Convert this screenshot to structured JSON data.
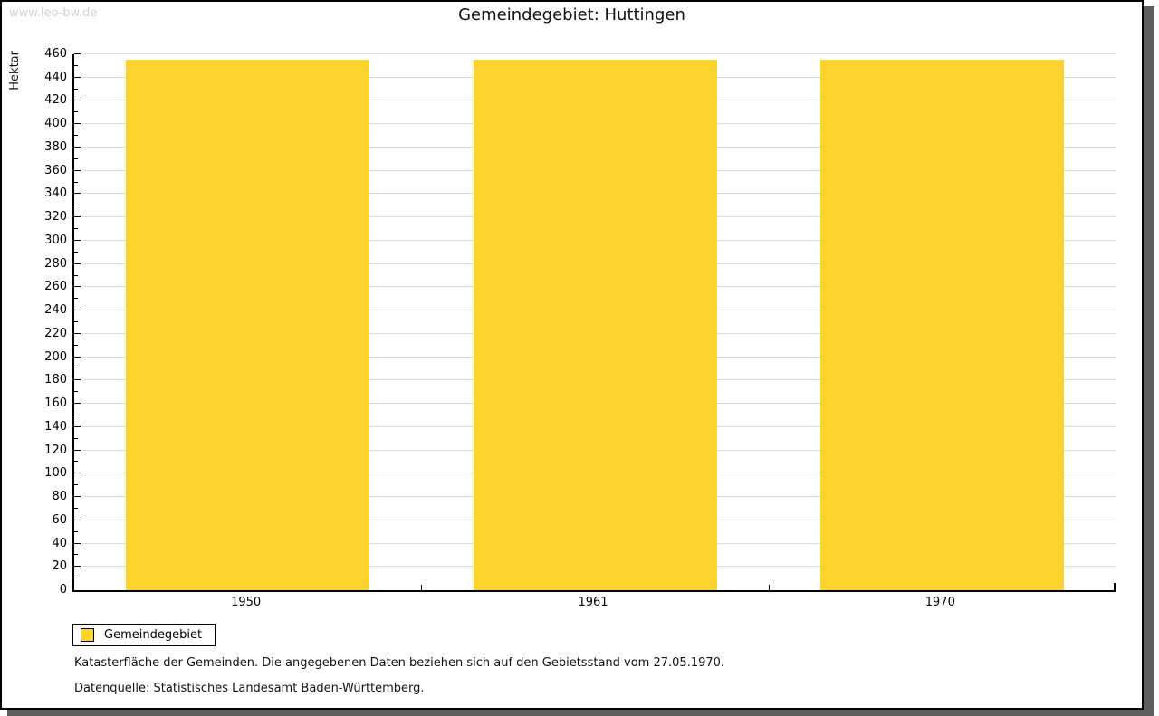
{
  "watermark": "www.leo-bw.de",
  "title": "Gemeindegebiet: Huttingen",
  "chart_data": {
    "type": "bar",
    "title": "Gemeindegebiet: Huttingen",
    "categories": [
      "1950",
      "1961",
      "1970"
    ],
    "series": [
      {
        "name": "Gemeindegebiet",
        "values": [
          455,
          455,
          455
        ]
      }
    ],
    "xlabel": "",
    "ylabel": "Hektar",
    "ylim": [
      0,
      460
    ],
    "ytick_major": 20,
    "ytick_minor": 10,
    "grid": "horizontal",
    "legend_position": "bottom-left",
    "bar_color": "#fcd42d",
    "grid_color": "#dcdcdc"
  },
  "legend": {
    "items": [
      {
        "label": "Gemeindegebiet",
        "color": "#fcd42d"
      }
    ]
  },
  "footer": {
    "line1": "Katasterfläche der Gemeinden. Die angegebenen Daten beziehen sich auf den Gebietsstand vom 27.05.1970.",
    "line2": "Datenquelle: Statistisches Landesamt Baden-Württemberg."
  }
}
